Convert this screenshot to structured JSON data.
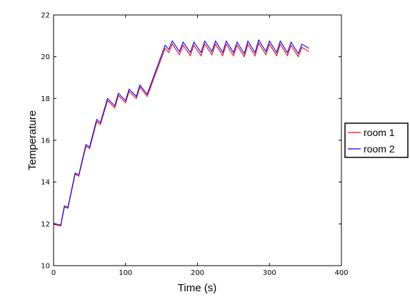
{
  "chart_data": {
    "type": "line",
    "title": "",
    "xlabel": "Time (s)",
    "ylabel": "Temperature",
    "xlim": [
      0,
      400
    ],
    "ylim": [
      10,
      22
    ],
    "xticks": [
      0,
      100,
      200,
      300,
      400
    ],
    "yticks": [
      10,
      12,
      14,
      16,
      18,
      20,
      22
    ],
    "grid": false,
    "legend": "outside-right",
    "series": [
      {
        "name": "room 1",
        "color": "#ff0000",
        "x": [
          0,
          10,
          15,
          20,
          30,
          35,
          45,
          50,
          60,
          65,
          75,
          85,
          90,
          100,
          105,
          115,
          120,
          130,
          155,
          160,
          165,
          175,
          180,
          190,
          195,
          205,
          210,
          220,
          225,
          235,
          240,
          250,
          255,
          265,
          270,
          280,
          285,
          295,
          300,
          310,
          315,
          325,
          330,
          340,
          345,
          355
        ],
        "y": [
          11.98,
          11.9,
          12.8,
          12.75,
          14.38,
          14.28,
          15.72,
          15.6,
          16.9,
          16.75,
          17.9,
          17.55,
          18.15,
          17.8,
          18.35,
          18.0,
          18.55,
          18.1,
          20.4,
          20.2,
          20.6,
          20.1,
          20.55,
          20.05,
          20.55,
          20.05,
          20.6,
          20.1,
          20.6,
          20.05,
          20.6,
          20.05,
          20.55,
          20.0,
          20.6,
          20.05,
          20.65,
          20.1,
          20.6,
          20.05,
          20.6,
          20.05,
          20.55,
          20.0,
          20.45,
          20.25
        ]
      },
      {
        "name": "room 2",
        "color": "#0000ff",
        "x": [
          0,
          10,
          15,
          20,
          30,
          35,
          45,
          50,
          60,
          65,
          75,
          85,
          90,
          100,
          105,
          115,
          120,
          130,
          155,
          160,
          165,
          175,
          180,
          190,
          195,
          205,
          210,
          220,
          225,
          235,
          240,
          250,
          255,
          265,
          270,
          280,
          285,
          295,
          300,
          310,
          315,
          325,
          330,
          340,
          345,
          355
        ],
        "y": [
          12.02,
          11.94,
          12.86,
          12.8,
          14.44,
          14.34,
          15.8,
          15.68,
          17.0,
          16.84,
          18.0,
          17.65,
          18.25,
          17.9,
          18.45,
          18.1,
          18.65,
          18.2,
          20.55,
          20.35,
          20.75,
          20.25,
          20.7,
          20.2,
          20.7,
          20.2,
          20.75,
          20.25,
          20.75,
          20.2,
          20.75,
          20.2,
          20.7,
          20.15,
          20.75,
          20.2,
          20.8,
          20.25,
          20.75,
          20.2,
          20.75,
          20.2,
          20.7,
          20.15,
          20.6,
          20.4
        ]
      }
    ]
  }
}
